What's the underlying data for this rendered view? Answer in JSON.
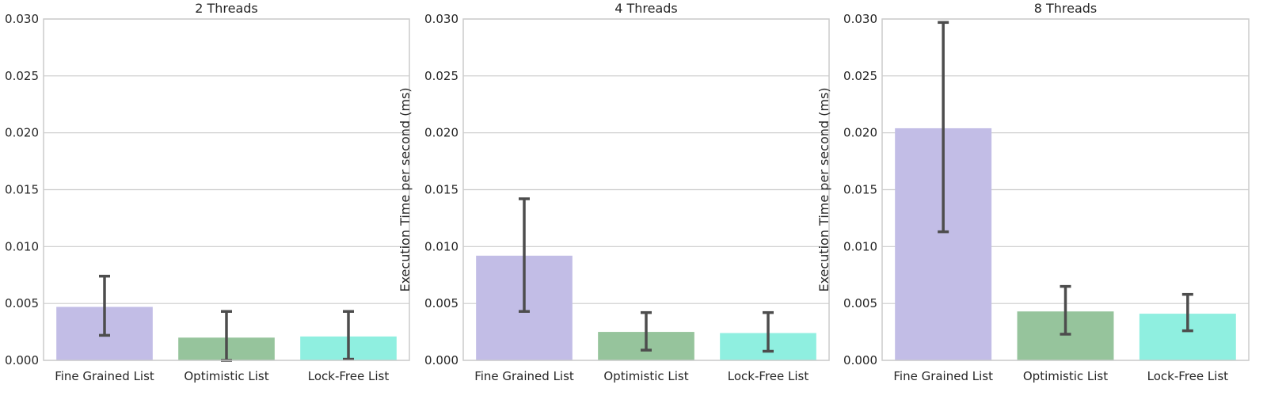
{
  "chart_data": [
    {
      "type": "bar",
      "title": "2 Threads",
      "ylabel": "",
      "xlabel": "",
      "categories": [
        "Fine Grained List",
        "Optimistic List",
        "Lock-Free List"
      ],
      "values": [
        0.0047,
        0.002,
        0.0021
      ],
      "error_low": [
        0.0022,
        0.0,
        0.0001
      ],
      "error_high": [
        0.0074,
        0.0043,
        0.0043
      ],
      "colors": [
        "#c2bde6",
        "#96c49c",
        "#8fefe0"
      ],
      "ylim": [
        0,
        0.03
      ],
      "yticks": [
        "0.000",
        "0.005",
        "0.010",
        "0.015",
        "0.020",
        "0.025",
        "0.030"
      ],
      "grid": true
    },
    {
      "type": "bar",
      "title": "4 Threads",
      "ylabel": "Execution Time per second (ms)",
      "xlabel": "",
      "categories": [
        "Fine Grained List",
        "Optimistic List",
        "Lock-Free List"
      ],
      "values": [
        0.0092,
        0.0025,
        0.0024
      ],
      "error_low": [
        0.0043,
        0.0009,
        0.0008
      ],
      "error_high": [
        0.0142,
        0.0042,
        0.0042
      ],
      "colors": [
        "#c2bde6",
        "#96c49c",
        "#8fefe0"
      ],
      "ylim": [
        0,
        0.03
      ],
      "yticks": [
        "0.000",
        "0.005",
        "0.010",
        "0.015",
        "0.020",
        "0.025",
        "0.030"
      ],
      "grid": true
    },
    {
      "type": "bar",
      "title": "8 Threads",
      "ylabel": "Execution Time per second (ms)",
      "xlabel": "",
      "categories": [
        "Fine Grained List",
        "Optimistic List",
        "Lock-Free List"
      ],
      "values": [
        0.0204,
        0.0043,
        0.0041
      ],
      "error_low": [
        0.0113,
        0.0023,
        0.0026
      ],
      "error_high": [
        0.0297,
        0.0065,
        0.0058
      ],
      "colors": [
        "#c2bde6",
        "#96c49c",
        "#8fefe0"
      ],
      "ylim": [
        0,
        0.03
      ],
      "yticks": [
        "0.000",
        "0.005",
        "0.010",
        "0.015",
        "0.020",
        "0.025",
        "0.030"
      ],
      "grid": true
    }
  ]
}
